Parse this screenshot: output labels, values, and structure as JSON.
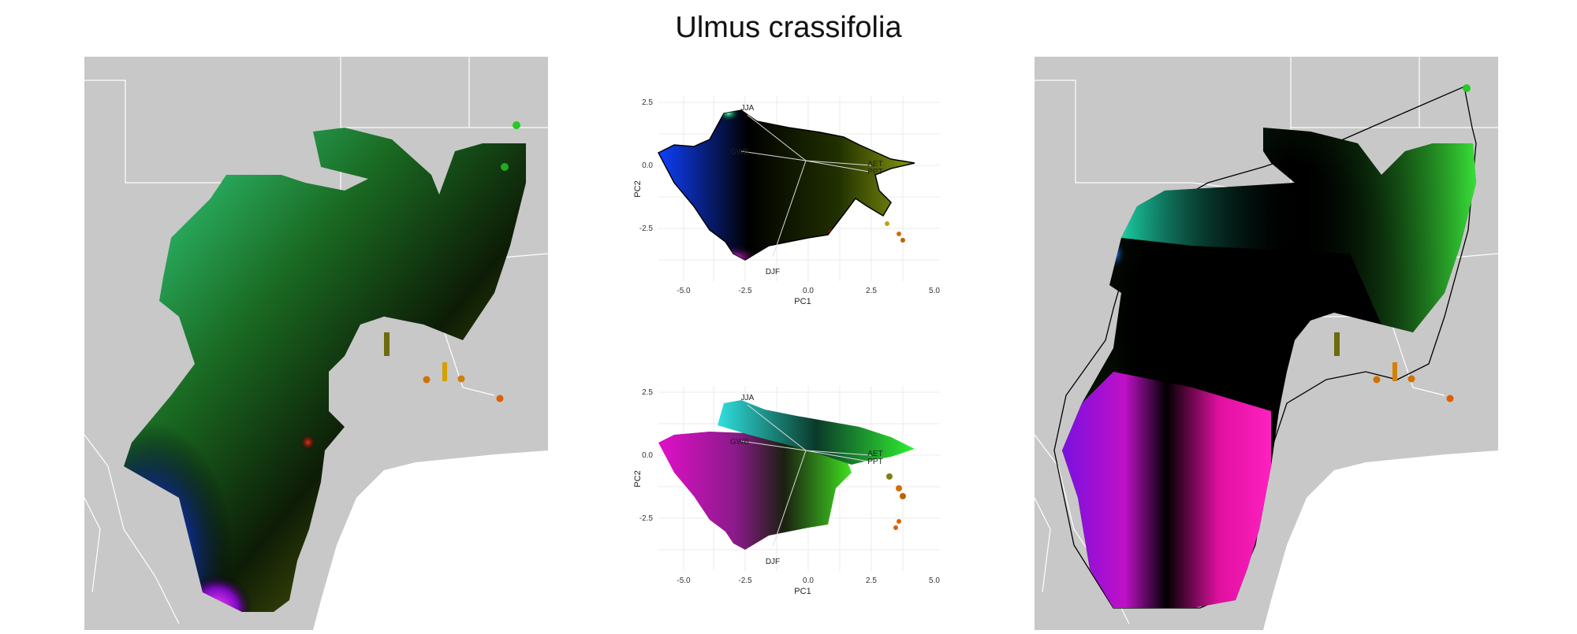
{
  "title": "Ulmus crassifolia",
  "pca": {
    "x_axis_title": "PC1",
    "y_axis_title": "PC2",
    "x_ticks": [
      "-5.0",
      "-2.5",
      "0.0",
      "2.5",
      "5.0"
    ],
    "y_ticks": [
      "2.5",
      "0.0",
      "-2.5"
    ],
    "vectors": [
      "JJA",
      "GWB",
      "AET",
      "PPT",
      "DJF"
    ]
  },
  "colors": {
    "land": "#c8c8c8",
    "border": "#ffffff",
    "grid": "#ebebeb"
  }
}
